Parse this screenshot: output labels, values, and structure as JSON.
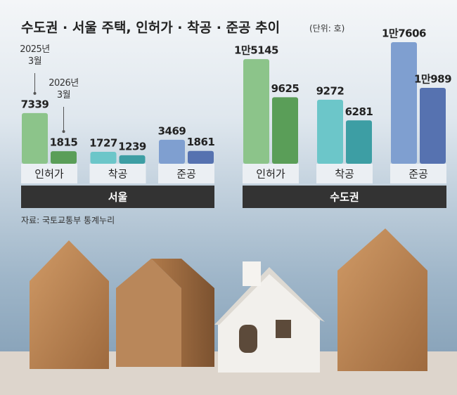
{
  "title": "수도권 · 서울 주택, 인허가 · 착공 · 준공 추이",
  "unit": "(단위: 호)",
  "source": "자료: 국토교통부 통계누리",
  "chart_data": [
    {
      "type": "bar",
      "group_label": "서울",
      "categories": [
        "인허가",
        "착공",
        "준공"
      ],
      "series": [
        {
          "name": "2025년\n3월",
          "colors": [
            "#8cc48a",
            "#6cc6c9",
            "#7f9fd0"
          ],
          "values": [
            7339,
            1727,
            3469
          ]
        },
        {
          "name": "2026년\n3월",
          "colors": [
            "#5a9e58",
            "#3d9ea4",
            "#5672b0"
          ],
          "values": [
            1815,
            1239,
            1861
          ]
        }
      ]
    },
    {
      "type": "bar",
      "group_label": "수도권",
      "categories": [
        "인허가",
        "착공",
        "준공"
      ],
      "series": [
        {
          "colors": [
            "#8cc48a",
            "#6cc6c9",
            "#7f9fd0"
          ],
          "values": [
            15145,
            9272,
            17606
          ],
          "value_labels": [
            "1만5145",
            "9272",
            "1만7606"
          ]
        },
        {
          "colors": [
            "#5a9e58",
            "#3d9ea4",
            "#5672b0"
          ],
          "values": [
            9625,
            6281,
            10989
          ],
          "value_labels": [
            "9625",
            "6281",
            "1만989"
          ]
        }
      ]
    }
  ]
}
